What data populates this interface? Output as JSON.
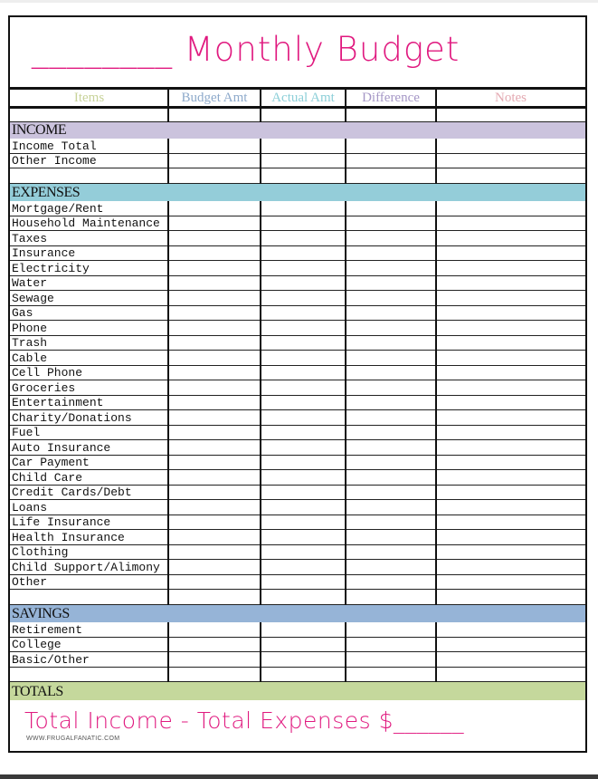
{
  "title": "________ Monthly Budget",
  "columns": [
    {
      "label": "Items",
      "color": "#c8d39a"
    },
    {
      "label": "Budget Amt",
      "color": "#8eaacb"
    },
    {
      "label": "Actual Amt",
      "color": "#8ccfd8"
    },
    {
      "label": "Difference",
      "color": "#a597c6"
    },
    {
      "label": "Notes",
      "color": "#e4aab2"
    }
  ],
  "sections": [
    {
      "label": "INCOME",
      "color": "#cbc3dd",
      "items": [
        "Income Total",
        "Other Income"
      ]
    },
    {
      "label": "EXPENSES",
      "color": "#94cdd9",
      "items": [
        "Mortgage/Rent",
        "Household Maintenance",
        "Taxes",
        "Insurance",
        "Electricity",
        "Water",
        "Sewage",
        "Gas",
        "Phone",
        "Trash",
        "Cable",
        "Cell Phone",
        "Groceries",
        "Entertainment",
        "Charity/Donations",
        "Fuel",
        "Auto Insurance",
        "Car Payment",
        "Child Care",
        "Credit Cards/Debt",
        "Loans",
        "Life Insurance",
        "Health Insurance",
        "Clothing",
        "Child Support/Alimony",
        "Other"
      ]
    },
    {
      "label": "SAVINGS",
      "color": "#96b4d7",
      "items": [
        "Retirement",
        "College",
        "Basic/Other"
      ]
    },
    {
      "label": "TOTALS",
      "color": "#c5d89c",
      "items": []
    }
  ],
  "footer": "Total Income - Total Expenses $______",
  "credit": "WWW.FRUGALFANATIC.COM"
}
